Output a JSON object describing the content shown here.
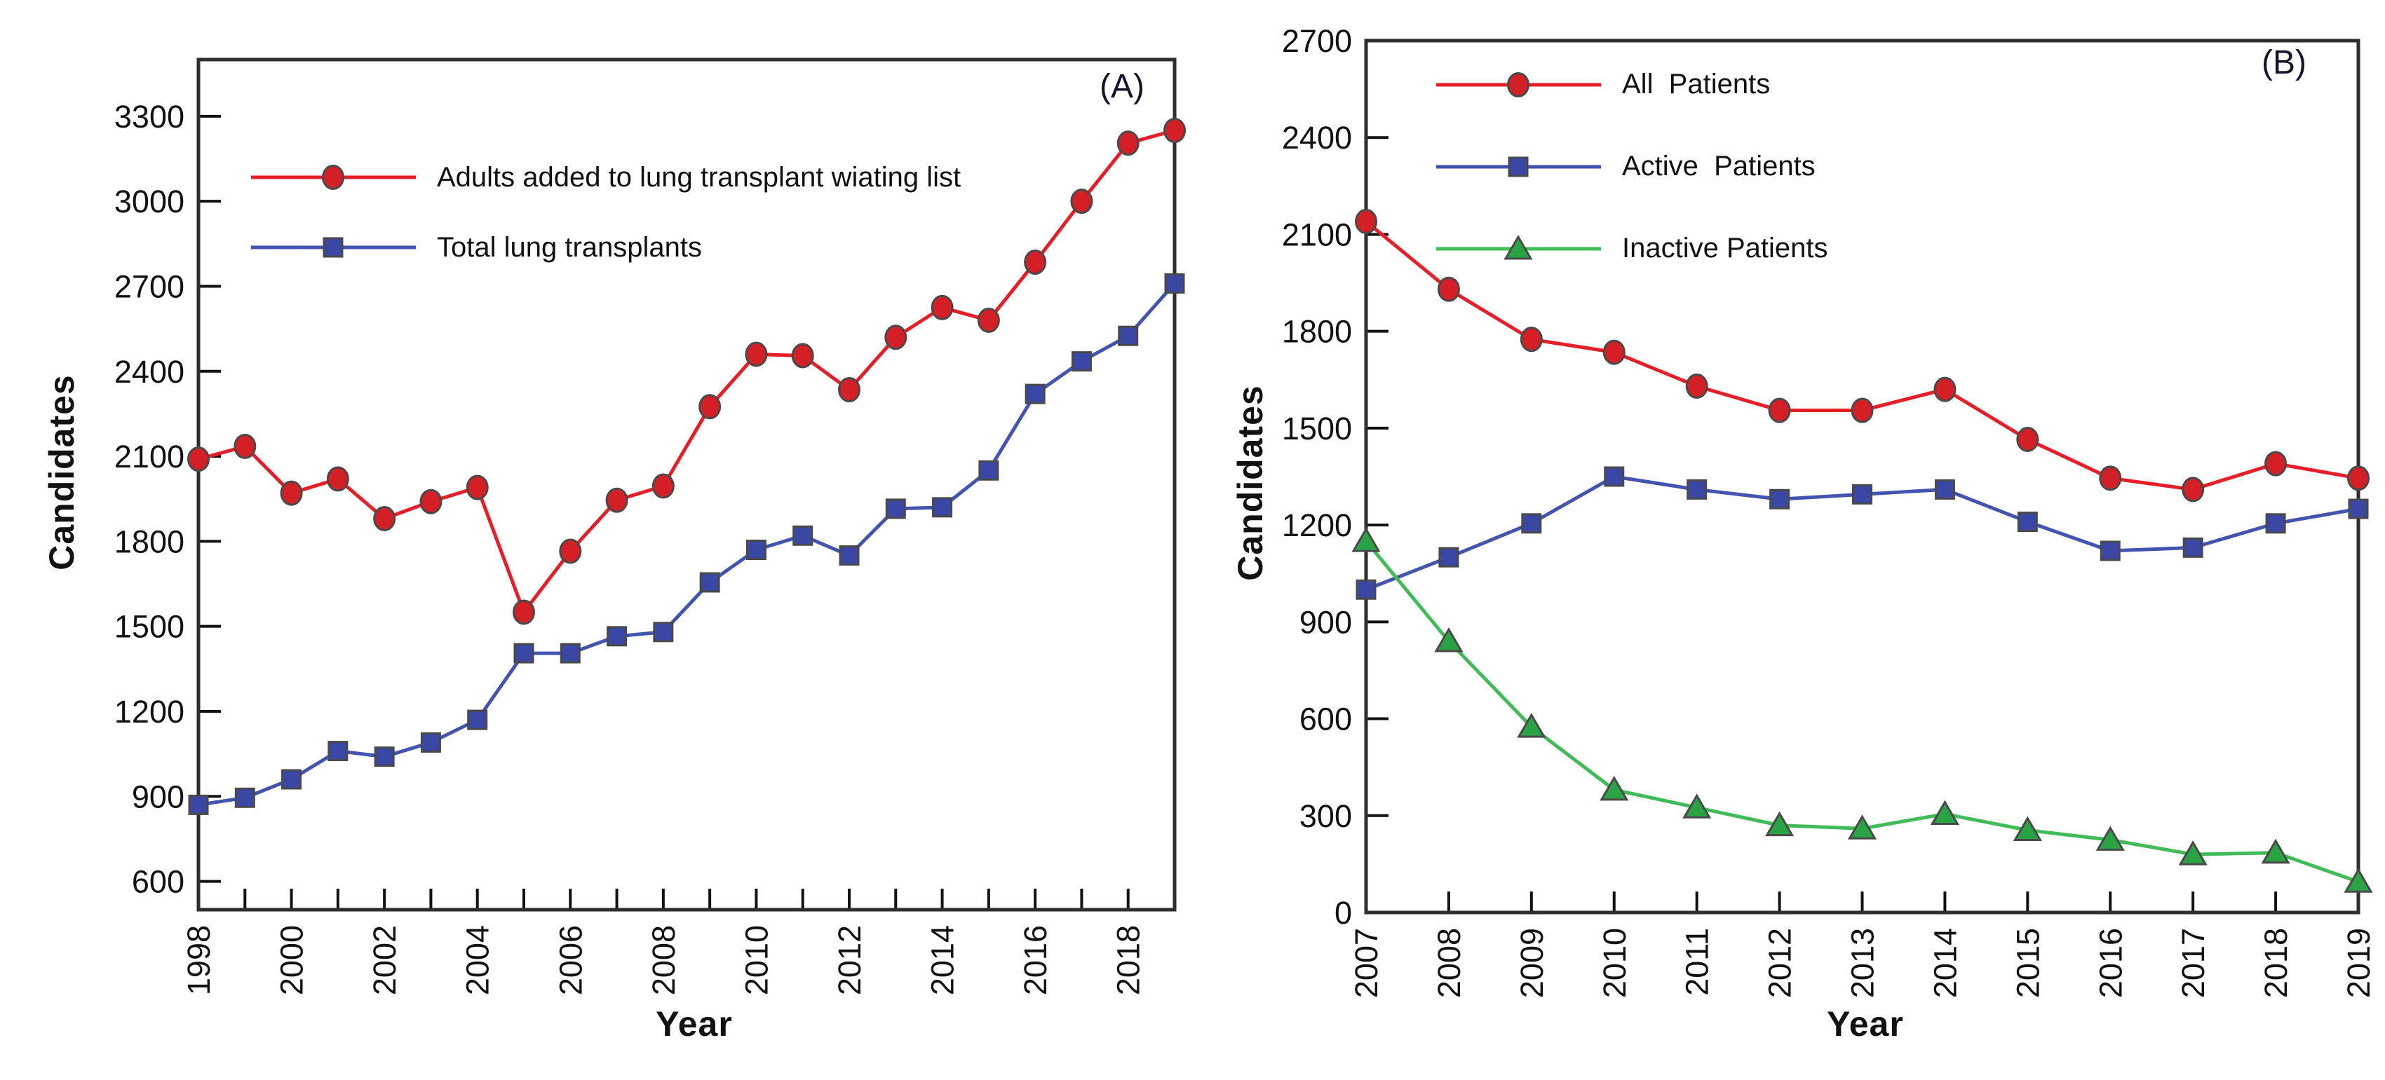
{
  "page": {
    "background": "#ffffff",
    "frame_color": "#2e2e2e",
    "tick_color": "#111111",
    "marker_edge_color": "#4a4a4a"
  },
  "chart_data": [
    {
      "type": "line",
      "panel_label": "(A)",
      "xlabel": "Year",
      "ylabel": "Candidates",
      "x": [
        1998,
        1999,
        2000,
        2001,
        2002,
        2003,
        2004,
        2005,
        2006,
        2007,
        2008,
        2009,
        2010,
        2011,
        2012,
        2013,
        2014,
        2015,
        2016,
        2017,
        2018,
        2019
      ],
      "x_tick_label_every": 2,
      "ylim": [
        500,
        3500
      ],
      "yticks": [
        600,
        900,
        1200,
        1500,
        1800,
        2100,
        2400,
        2700,
        3000,
        3300
      ],
      "grid": false,
      "legend_position": "top-left",
      "series": [
        {
          "name": "Adults added to lung transplant wiating list",
          "marker": "circle",
          "line_color": "#e61e28",
          "marker_color": "#d41f26",
          "values": [
            2090,
            2135,
            1970,
            2020,
            1880,
            1940,
            1990,
            1550,
            1765,
            1945,
            1995,
            2275,
            2460,
            2455,
            2335,
            2520,
            2625,
            2580,
            2785,
            3000,
            3205,
            3250
          ]
        },
        {
          "name": "Total lung transplants",
          "marker": "square",
          "line_color": "#4353b0",
          "marker_color": "#3a47a5",
          "values": [
            870,
            895,
            960,
            1060,
            1040,
            1090,
            1170,
            1405,
            1405,
            1465,
            1480,
            1655,
            1770,
            1820,
            1750,
            1915,
            1920,
            2050,
            2320,
            2435,
            2525,
            2710
          ]
        }
      ]
    },
    {
      "type": "line",
      "panel_label": "(B)",
      "xlabel": "Year",
      "ylabel": "Candidates",
      "x": [
        2007,
        2008,
        2009,
        2010,
        2011,
        2012,
        2013,
        2014,
        2015,
        2016,
        2017,
        2018,
        2019
      ],
      "x_tick_label_every": 1,
      "ylim": [
        0,
        2700
      ],
      "yticks": [
        0,
        300,
        600,
        900,
        1200,
        1500,
        1800,
        2100,
        2400,
        2700
      ],
      "grid": false,
      "legend_position": "top-left",
      "series": [
        {
          "name": "All  Patients",
          "marker": "circle",
          "line_color": "#e61e28",
          "marker_color": "#d41f26",
          "values": [
            2140,
            1930,
            1775,
            1735,
            1630,
            1555,
            1555,
            1620,
            1465,
            1345,
            1310,
            1390,
            1345
          ]
        },
        {
          "name": "Active  Patients",
          "marker": "square",
          "line_color": "#4353b0",
          "marker_color": "#3a47a5",
          "values": [
            1000,
            1100,
            1205,
            1350,
            1310,
            1280,
            1295,
            1310,
            1210,
            1120,
            1130,
            1205,
            1250
          ]
        },
        {
          "name": "Inactive Patients",
          "marker": "triangle",
          "line_color": "#41bb58",
          "marker_color": "#2aa344",
          "values": [
            1150,
            840,
            575,
            380,
            325,
            270,
            260,
            305,
            255,
            225,
            180,
            185,
            95
          ]
        }
      ]
    }
  ]
}
